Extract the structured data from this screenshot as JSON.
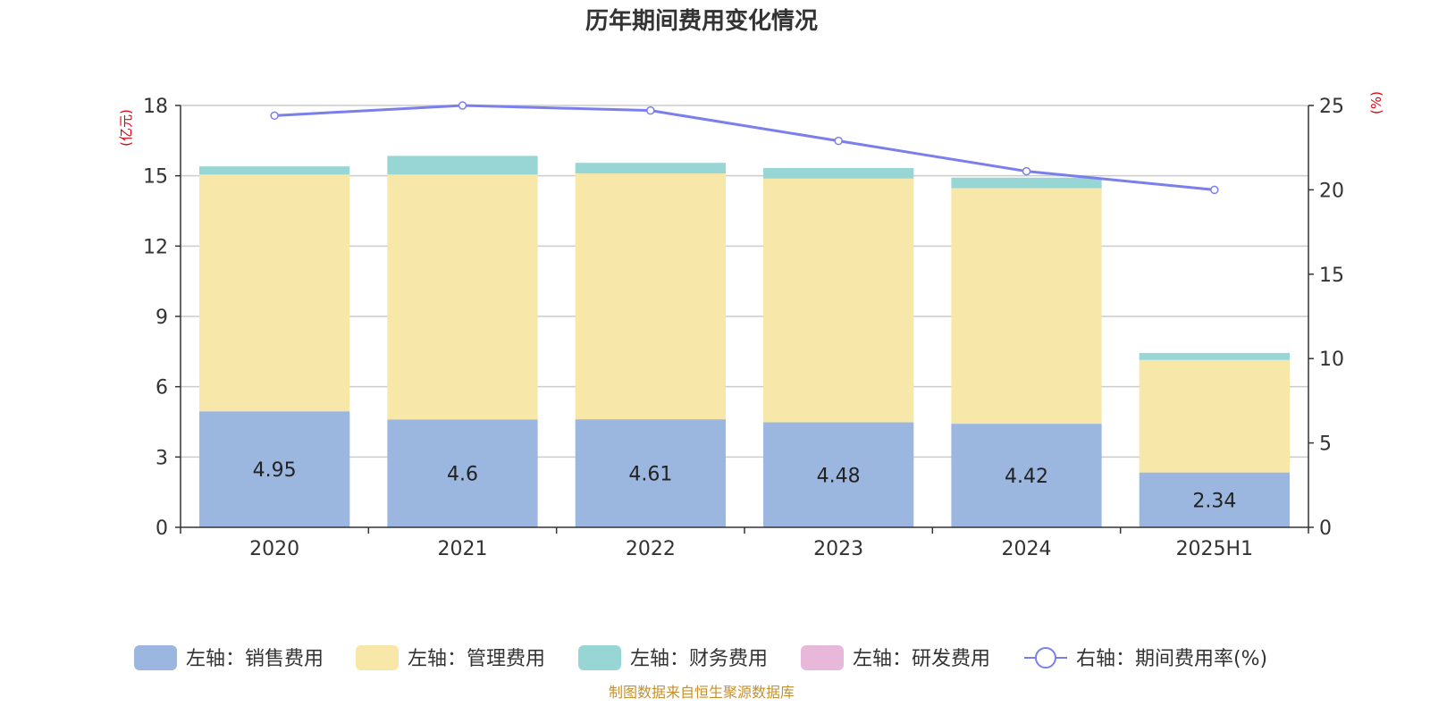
{
  "chart_data": {
    "type": "bar",
    "title": "历年期间费用变化情况",
    "categories": [
      "2020",
      "2021",
      "2022",
      "2023",
      "2024",
      "2025H1"
    ],
    "left_axis": {
      "unit_label": "(亿元)",
      "ylim": [
        0,
        18
      ],
      "ticks": [
        0,
        3,
        6,
        9,
        12,
        15,
        18
      ]
    },
    "right_axis": {
      "unit_label": "(%)",
      "ylim": [
        0,
        25
      ],
      "ticks": [
        0,
        5,
        10,
        15,
        20,
        25
      ]
    },
    "grid": true,
    "legend_position": "bottom",
    "series": [
      {
        "name": "左轴：销售费用",
        "kind": "stacked-bar",
        "axis": "left",
        "color": "#9bb7e0",
        "values": [
          4.95,
          4.6,
          4.61,
          4.48,
          4.42,
          2.34
        ],
        "show_labels": true
      },
      {
        "name": "左轴：管理费用",
        "kind": "stacked-bar",
        "axis": "left",
        "color": "#f7e7a8",
        "values": [
          10.1,
          10.45,
          10.49,
          10.4,
          10.05,
          4.8
        ],
        "show_labels": false
      },
      {
        "name": "左轴：财务费用",
        "kind": "stacked-bar",
        "axis": "left",
        "color": "#98d5d5",
        "values": [
          0.35,
          0.8,
          0.45,
          0.45,
          0.45,
          0.3
        ],
        "show_labels": false
      },
      {
        "name": "左轴：研发费用",
        "kind": "stacked-bar",
        "axis": "left",
        "color": "#e8b8da",
        "values": [
          0,
          0,
          0,
          0,
          0,
          0
        ],
        "show_labels": false
      },
      {
        "name": "右轴：期间费用率(%)",
        "kind": "line",
        "axis": "right",
        "color": "#7b7fec",
        "values": [
          24.4,
          25.0,
          24.7,
          22.9,
          21.1,
          20.0
        ],
        "show_labels": false
      }
    ],
    "source_note": "制图数据来自恒生聚源数据库"
  }
}
